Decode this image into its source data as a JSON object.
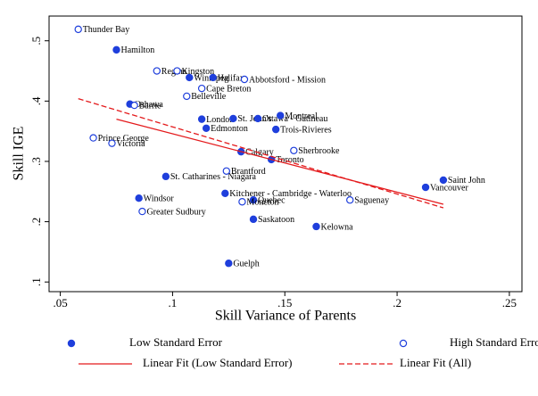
{
  "chart_data": {
    "type": "scatter",
    "x_label": "Skill Variance of Parents",
    "y_label": "Skill IGE",
    "xlim": [
      0.045,
      0.2556
    ],
    "ylim": [
      0.084,
      0.541
    ],
    "xticks": [
      {
        "value": 0.05,
        "label": ".05"
      },
      {
        "value": 0.1,
        "label": ".1"
      },
      {
        "value": 0.15,
        "label": ".15"
      },
      {
        "value": 0.2,
        "label": ".2"
      },
      {
        "value": 0.25,
        "label": ".25"
      }
    ],
    "yticks": [
      {
        "value": 0.1,
        "label": ".1"
      },
      {
        "value": 0.2,
        "label": ".2"
      },
      {
        "value": 0.3,
        "label": ".3"
      },
      {
        "value": 0.4,
        "label": ".4"
      },
      {
        "value": 0.5,
        "label": ".5"
      }
    ],
    "series": [
      {
        "name": "Low Standard Error",
        "color": "#1f3fdc",
        "marker": "filled",
        "labels": [
          "Hamilton",
          "Winnipeg",
          "Halifax",
          "Oshawa",
          "London",
          "St. John's",
          "Ottawa - Gatineau",
          "Montreal",
          "Edmonton",
          "Trois-Rivieres",
          "Calgary",
          "Toronto",
          "St. Catharines - Niagara",
          "Windsor",
          "Kitchener - Cambridge - Waterloo",
          "Quebec",
          "Saskatoon",
          "Kelowna",
          "Guelph",
          "Saint John",
          "Vancouver"
        ],
        "x": [
          0.075,
          0.1075,
          0.118,
          0.081,
          0.113,
          0.127,
          0.138,
          0.148,
          0.115,
          0.146,
          0.1305,
          0.144,
          0.097,
          0.085,
          0.1234,
          0.136,
          0.136,
          0.164,
          0.125,
          0.2206,
          0.2127
        ],
        "values": [
          0.485,
          0.439,
          0.439,
          0.395,
          0.37,
          0.371,
          0.371,
          0.376,
          0.355,
          0.353,
          0.316,
          0.303,
          0.275,
          0.239,
          0.247,
          0.236,
          0.204,
          0.192,
          0.131,
          0.269,
          0.257
        ]
      },
      {
        "name": "High Standard Error",
        "color": "#1f3fdc",
        "marker": "hollow",
        "labels": [
          "Thunder Bay",
          "Regina",
          "Kingston",
          "Abbotsford - Mission",
          "Cape Breton",
          "Belleville",
          "Barrie",
          "Prince George",
          "Victoria",
          "Sherbrooke",
          "Brantford",
          "Greater Sudbury",
          "Moncton",
          "Saguenay"
        ],
        "x": [
          0.058,
          0.093,
          0.102,
          0.132,
          0.113,
          0.1063,
          0.083,
          0.0647,
          0.073,
          0.154,
          0.124,
          0.0865,
          0.131,
          0.179
        ],
        "values": [
          0.519,
          0.45,
          0.45,
          0.436,
          0.421,
          0.408,
          0.393,
          0.339,
          0.33,
          0.318,
          0.284,
          0.217,
          0.233,
          0.236
        ]
      },
      {
        "name": "Linear Fit (Low Standard Error)",
        "color": "#e41a1c",
        "line": "solid",
        "x": [
          0.075,
          0.2206
        ],
        "values": [
          0.37,
          0.229
        ]
      },
      {
        "name": "Linear Fit (All)",
        "color": "#e41a1c",
        "line": "dashed",
        "x": [
          0.058,
          0.2206
        ],
        "values": [
          0.404,
          0.223
        ]
      }
    ]
  }
}
